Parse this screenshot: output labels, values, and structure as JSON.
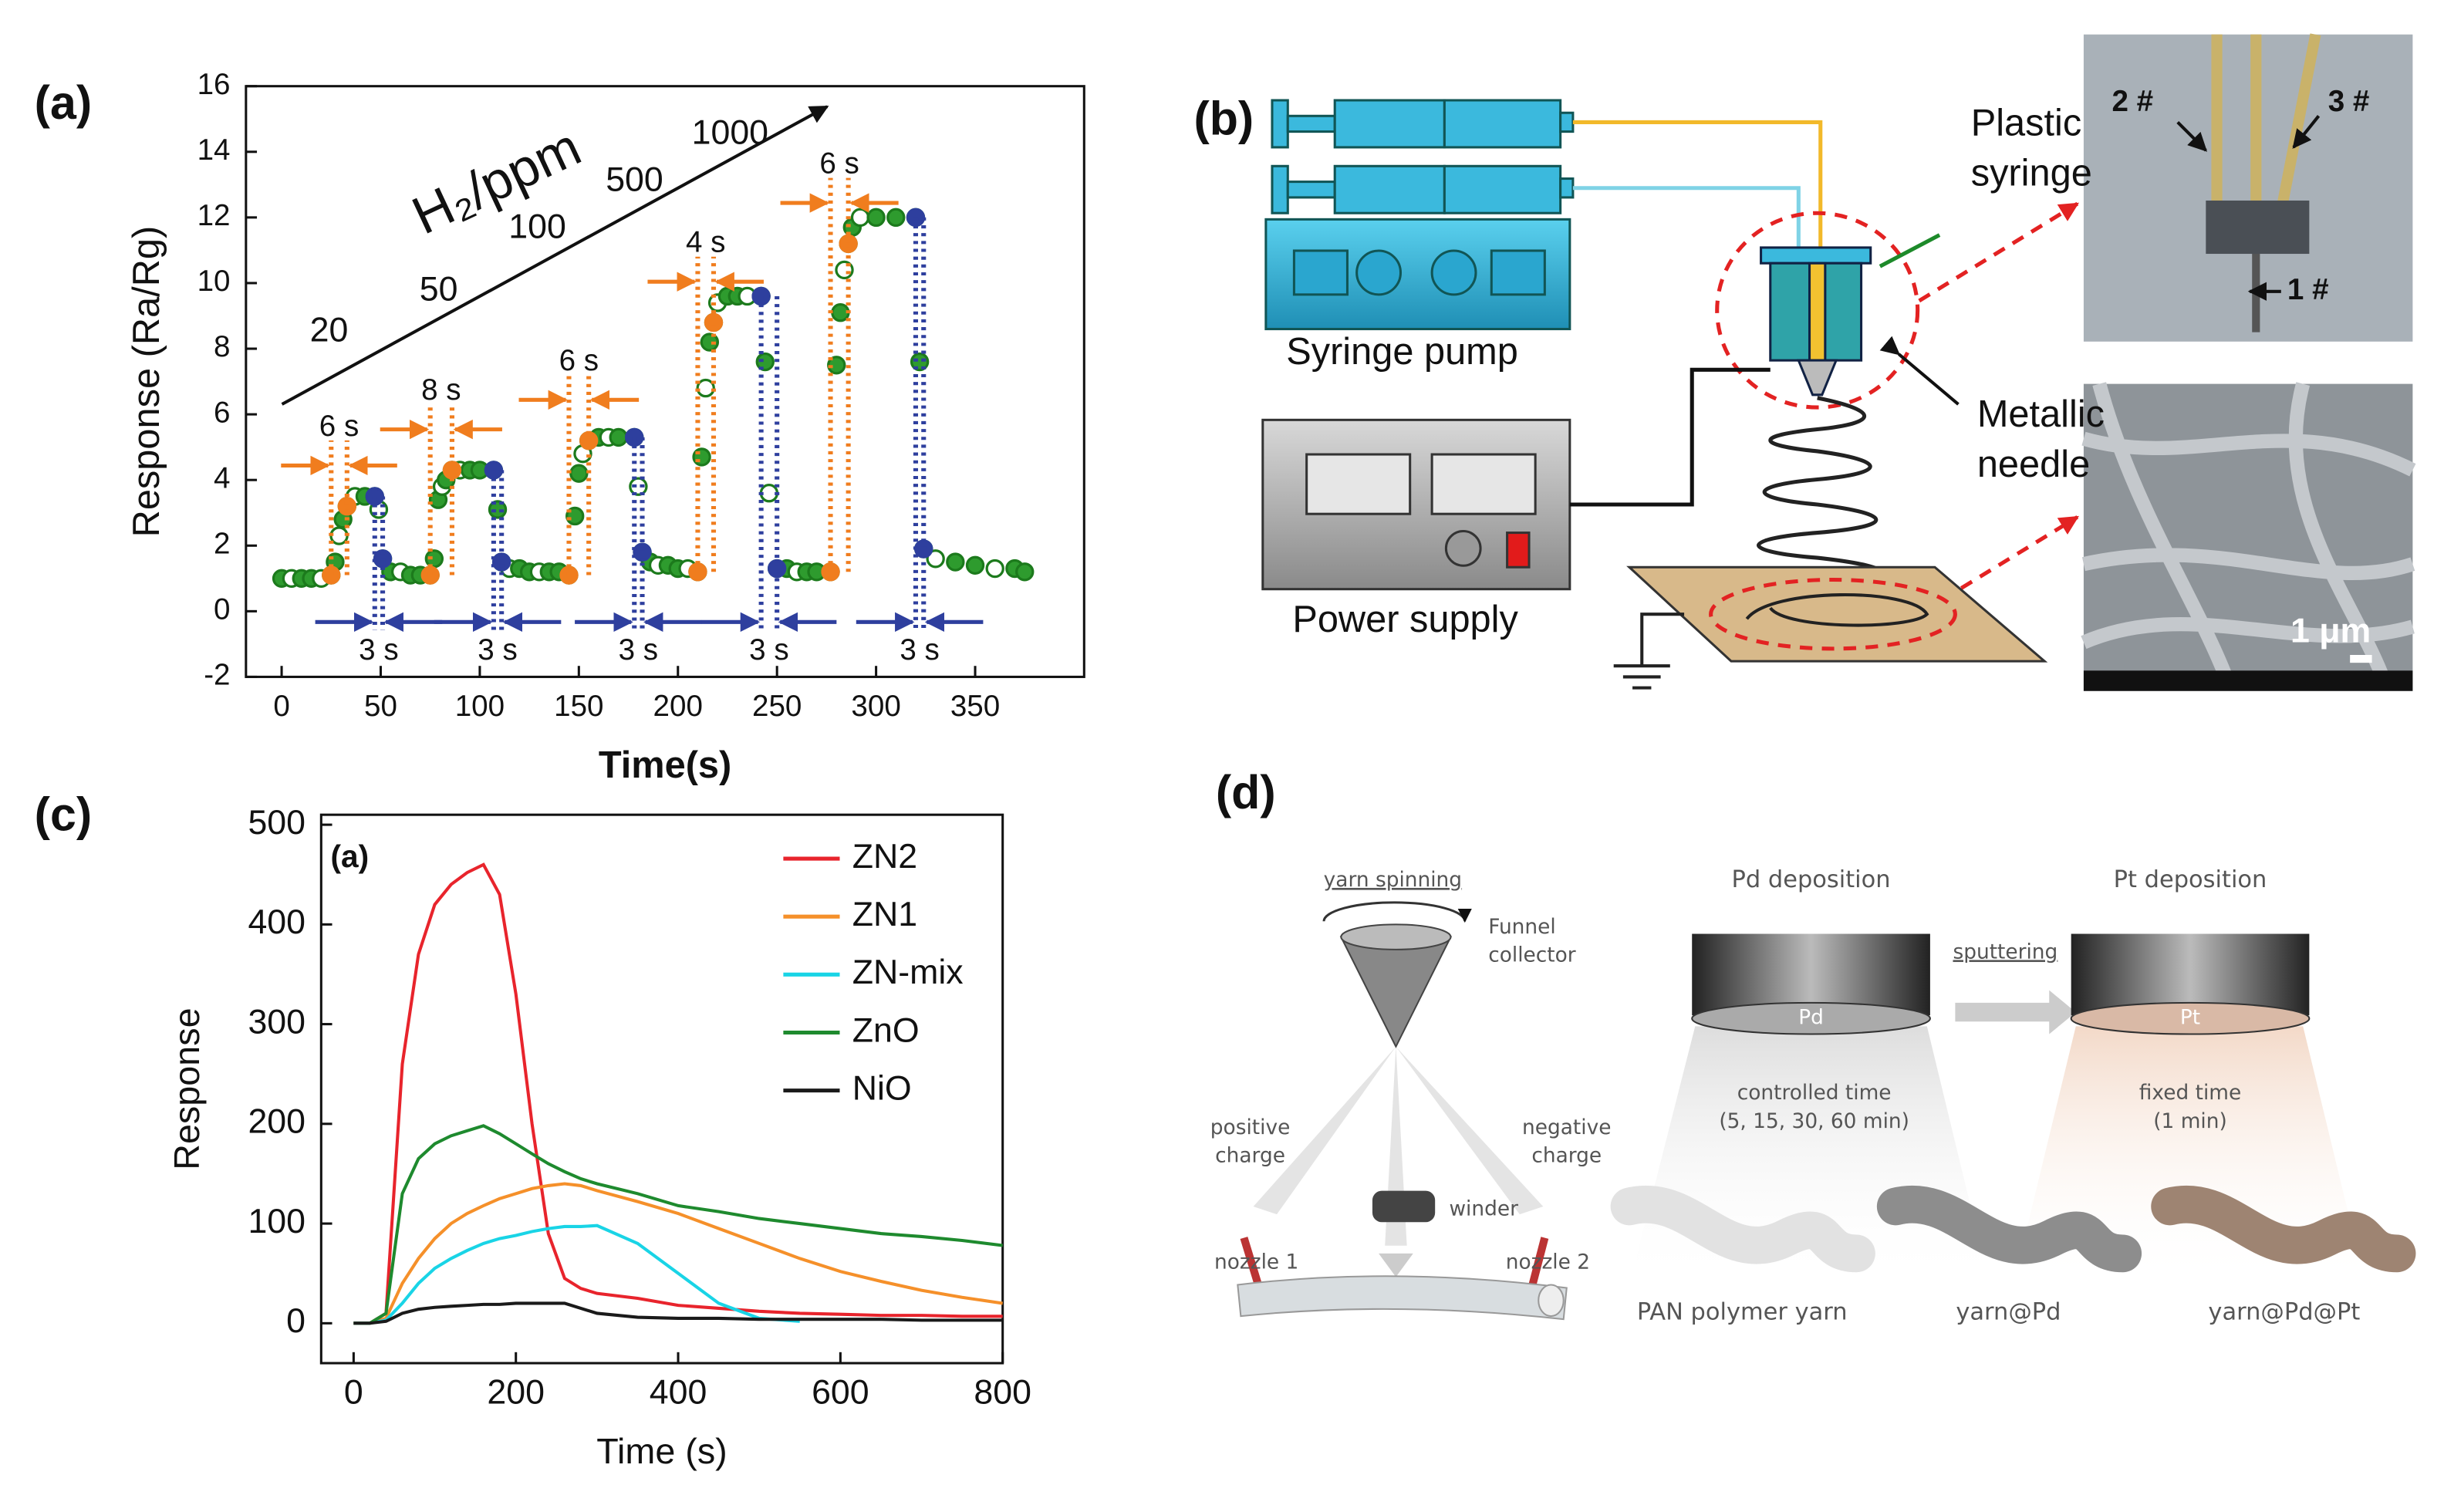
{
  "panel_labels": [
    "(a)",
    "(b)",
    "(c)",
    "(d)"
  ],
  "chart_data": [
    {
      "type": "scatter",
      "xlabel": "Time(s)",
      "ylabel": "Response (Ra/Rg)",
      "xlim": [
        -18,
        405
      ],
      "xticks": [
        0,
        50,
        100,
        150,
        200,
        250,
        300,
        350
      ],
      "ylim": [
        -2,
        16
      ],
      "yticks": [
        -2,
        0,
        2,
        4,
        6,
        8,
        10,
        12,
        14,
        16
      ],
      "series": [
        {
          "color": "#2e9b2e",
          "x": [
            0,
            5,
            10,
            15,
            20,
            25,
            27,
            29,
            31,
            33,
            37,
            42,
            47,
            49,
            51,
            55,
            60,
            65,
            70,
            75,
            77,
            79,
            81,
            83,
            86,
            90,
            95,
            100,
            107,
            109,
            111,
            115,
            120,
            125,
            130,
            135,
            140,
            145,
            148,
            150,
            152,
            155,
            160,
            165,
            170,
            178,
            180,
            182,
            186,
            190,
            195,
            200,
            205,
            210,
            212,
            214,
            216,
            218,
            220,
            225,
            230,
            235,
            242,
            244,
            246,
            250,
            255,
            260,
            265,
            270,
            277,
            280,
            282,
            284,
            286,
            288,
            292,
            300,
            310,
            320,
            322,
            324,
            330,
            340,
            350,
            360,
            370,
            375
          ],
          "values": [
            1.0,
            1.0,
            1.0,
            1.0,
            1.0,
            1.1,
            1.5,
            2.3,
            2.8,
            3.2,
            3.5,
            3.5,
            3.5,
            3.1,
            1.6,
            1.2,
            1.2,
            1.1,
            1.1,
            1.1,
            1.6,
            3.4,
            3.8,
            4.0,
            4.3,
            4.3,
            4.3,
            4.3,
            4.3,
            3.1,
            1.5,
            1.3,
            1.3,
            1.2,
            1.2,
            1.2,
            1.2,
            1.1,
            2.9,
            4.2,
            4.8,
            5.2,
            5.3,
            5.3,
            5.3,
            5.3,
            3.8,
            1.8,
            1.5,
            1.4,
            1.4,
            1.3,
            1.3,
            1.2,
            4.7,
            6.8,
            8.2,
            8.8,
            9.4,
            9.6,
            9.6,
            9.6,
            9.6,
            7.6,
            3.6,
            1.3,
            1.3,
            1.2,
            1.2,
            1.2,
            1.2,
            7.5,
            9.1,
            10.4,
            11.2,
            11.7,
            12.0,
            12.0,
            12.0,
            12.0,
            7.6,
            1.9,
            1.6,
            1.5,
            1.4,
            1.3,
            1.3,
            1.2
          ]
        },
        {
          "color": "#f07d1e",
          "x": [
            25,
            33,
            75,
            86,
            145,
            155,
            210,
            218,
            277,
            286
          ],
          "values": [
            1.1,
            3.2,
            1.1,
            4.3,
            1.1,
            5.2,
            1.2,
            8.8,
            1.2,
            11.2
          ]
        },
        {
          "color": "#2e3f9e",
          "x": [
            47,
            51,
            107,
            111,
            178,
            182,
            242,
            250,
            320,
            324
          ],
          "values": [
            3.5,
            1.6,
            4.3,
            1.5,
            5.3,
            1.8,
            9.6,
            1.3,
            12.0,
            1.9
          ]
        }
      ],
      "annotations": {
        "gas": "H₂/ppm",
        "concentrations": [
          20,
          50,
          100,
          500,
          1000
        ],
        "rise_times": [
          "6 s",
          "8 s",
          "6 s",
          "4 s",
          "6 s"
        ],
        "fall_times": [
          "3 s",
          "3 s",
          "3 s",
          "3 s",
          "3 s"
        ]
      }
    },
    {
      "type": "line",
      "inset_label": "(a)",
      "xlabel": "Time (s)",
      "ylabel": "Response",
      "xlim": [
        -40,
        800
      ],
      "xticks": [
        0,
        200,
        400,
        600,
        800
      ],
      "ylim": [
        -40,
        510
      ],
      "yticks": [
        0,
        100,
        200,
        300,
        400,
        500
      ],
      "legend": "upper right",
      "x": [
        0,
        20,
        40,
        60,
        80,
        100,
        120,
        140,
        160,
        180,
        200,
        220,
        240,
        260,
        280,
        300,
        350,
        400,
        450,
        500,
        550,
        600,
        650,
        700,
        750,
        800
      ],
      "series": [
        {
          "name": "ZN2",
          "color": "#e8242c",
          "values": [
            0,
            0,
            10,
            260,
            370,
            420,
            440,
            452,
            460,
            430,
            330,
            200,
            90,
            45,
            35,
            30,
            25,
            18,
            15,
            12,
            10,
            9,
            8,
            8,
            7,
            7
          ]
        },
        {
          "name": "ZN1",
          "color": "#f5902a",
          "values": [
            0,
            0,
            5,
            40,
            65,
            85,
            100,
            110,
            118,
            125,
            130,
            135,
            138,
            140,
            138,
            133,
            122,
            110,
            95,
            80,
            65,
            52,
            42,
            33,
            26,
            20
          ]
        },
        {
          "name": "ZN-mix",
          "color": "#19d4e6",
          "values": [
            0,
            0,
            3,
            20,
            40,
            55,
            65,
            73,
            80,
            85,
            88,
            92,
            95,
            97,
            97,
            98,
            80,
            50,
            20,
            5,
            2,
            null,
            null,
            null,
            null,
            null
          ]
        },
        {
          "name": "ZnO",
          "color": "#1e8a2e",
          "values": [
            0,
            0,
            10,
            130,
            165,
            180,
            188,
            193,
            198,
            190,
            180,
            170,
            160,
            152,
            145,
            140,
            130,
            118,
            112,
            105,
            100,
            95,
            90,
            87,
            83,
            78
          ]
        },
        {
          "name": "NiO",
          "color": "#1a1a1a",
          "values": [
            0,
            0,
            2,
            10,
            14,
            16,
            17,
            18,
            19,
            19,
            20,
            20,
            20,
            20,
            15,
            10,
            6,
            5,
            5,
            4,
            4,
            4,
            4,
            3,
            3,
            3
          ]
        }
      ]
    }
  ],
  "diagram_b": {
    "plastic_syringe": [
      "Plastic",
      "syringe"
    ],
    "syringe_pump": "Syringe pump",
    "metallic_needle": [
      "Metallic",
      "needle"
    ],
    "power_supply": "Power supply",
    "photo_labels": [
      "2 #",
      "3 #",
      "1 #"
    ],
    "scale_bar": "1 μm"
  },
  "diagram_d": {
    "yarn_spinning": "yarn spinning",
    "funnel_collector": [
      "Funnel",
      "collector"
    ],
    "positive_charge": [
      "positive",
      "charge"
    ],
    "negative_charge": [
      "negative",
      "charge"
    ],
    "winder": "winder",
    "nozzle_1": "nozzle 1",
    "nozzle_2": "nozzle 2",
    "pd_deposition": "Pd deposition",
    "pd": "Pd",
    "sputtering": "sputtering",
    "pt_deposition": "Pt deposition",
    "pt": "Pt",
    "controlled_time": [
      "controlled time",
      "(5, 15, 30, 60 min)"
    ],
    "fixed_time": [
      "fixed time",
      "(1 min)"
    ],
    "yarns": [
      "PAN polymer yarn",
      "yarn@Pd",
      "yarn@Pd@Pt"
    ]
  }
}
